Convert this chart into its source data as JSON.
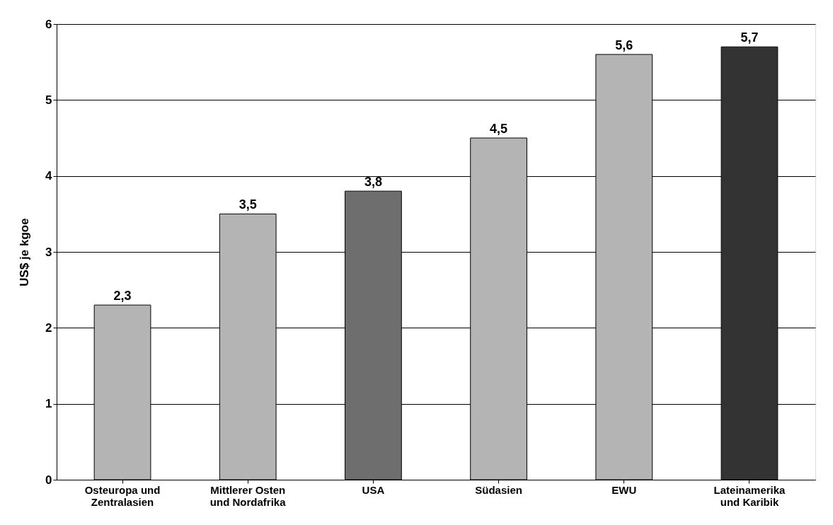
{
  "chart_data": {
    "type": "bar",
    "ylabel": "US$ je kgoe",
    "categories": [
      "Osteuropa und\nZentralasien",
      "Mittlerer Osten\nund Nordafrika",
      "USA",
      "Südasien",
      "EWU",
      "Lateinamerika\nund Karibik"
    ],
    "values": [
      2.3,
      3.5,
      3.8,
      4.5,
      5.6,
      5.7
    ],
    "value_labels": [
      "2,3",
      "3,5",
      "3,8",
      "4,5",
      "5,6",
      "5,7"
    ],
    "colors": [
      "#b4b4b4",
      "#b4b4b4",
      "#6e6e6e",
      "#b4b4b4",
      "#b4b4b4",
      "#333333"
    ],
    "ylim": [
      0,
      6
    ],
    "yticks": [
      0,
      1,
      2,
      3,
      4,
      5,
      6
    ],
    "grid": "y"
  }
}
